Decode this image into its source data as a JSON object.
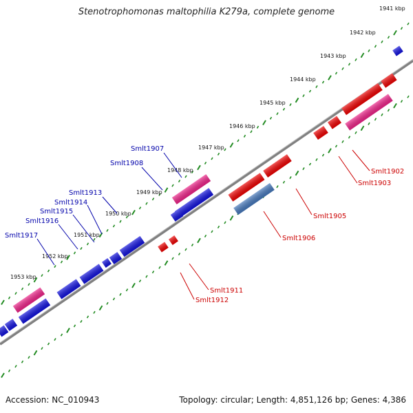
{
  "title": "Stenotrophomonas maltophilia K279a, complete genome",
  "accession_text": "Accession: NC_010943",
  "summary_text": "Topology: circular; Length: 4,851,126 bp; Genes: 4,386",
  "colors": {
    "backbone": "#888888",
    "ticks": "#228b22",
    "forward_gene": "#1010dd",
    "forward_pseudo": "#ee2288",
    "reverse_gene": "#ee0000",
    "reverse_pseudo": "#ee2288",
    "reverse_other": "#4477bb",
    "label_forward": "#0000aa",
    "label_reverse": "#cc0000"
  },
  "kbp_ticks": [
    "1941 kbp",
    "1942 kbp",
    "1943 kbp",
    "1944 kbp",
    "1945 kbp",
    "1946 kbp",
    "1947 kbp",
    "1948 kbp",
    "1949 kbp",
    "1950 kbp",
    "1951 kbp",
    "1952 kbp",
    "1953 kbp"
  ],
  "gene_labels": {
    "forward": [
      "Smlt1907",
      "Smlt1908",
      "Smlt1913",
      "Smlt1914",
      "Smlt1915",
      "Smlt1916",
      "Smlt1917"
    ],
    "reverse": [
      "Smlt1902",
      "Smlt1903",
      "Smlt1905",
      "Smlt1906",
      "Smlt1911",
      "Smlt1912"
    ]
  }
}
